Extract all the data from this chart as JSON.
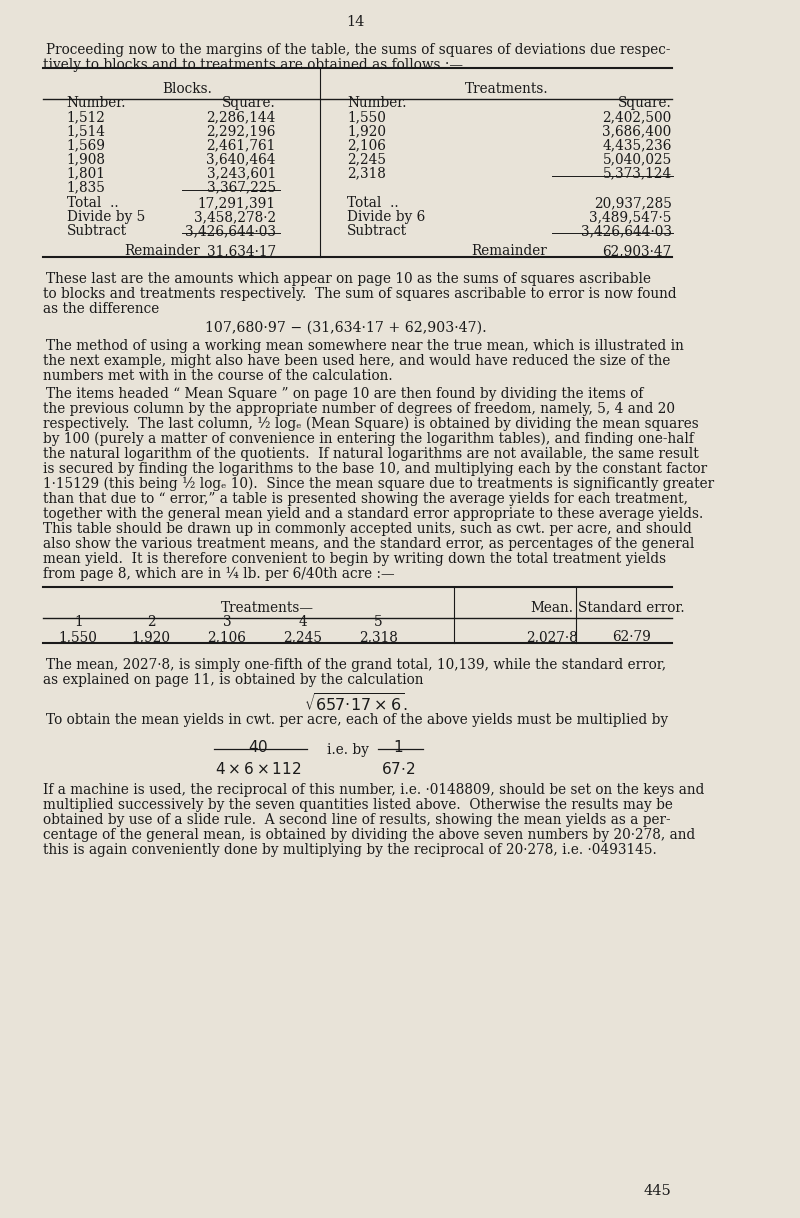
{
  "page_number": "14",
  "bg_color": "#e8e3d8",
  "text_color": "#1a1a1a",
  "page_number_bottom": "445",
  "intro_line1": "Proceeding now to the margins of the table, the sums of squares of deviations due respec-",
  "intro_line2": "tively to blocks and to treatments are obtained as follows :—",
  "table1": {
    "blocks_header": "Blocks.",
    "treatments_header": "Treatments.",
    "col1_header": "Number.",
    "col2_header": "Square.",
    "col3_header": "Number.",
    "col4_header": "Square.",
    "blocks_numbers": [
      "1,512",
      "1,514",
      "1,569",
      "1,908",
      "1,801",
      "1,835"
    ],
    "blocks_squares": [
      "2,286,144",
      "2,292,196",
      "2,461,761",
      "3,640,464",
      "3,243,601",
      "3,367,225"
    ],
    "treatments_numbers": [
      "1,550",
      "1,920",
      "2,106",
      "2,245",
      "2,318"
    ],
    "treatments_squares": [
      "2,402,500",
      "3,686,400",
      "4,435,236",
      "5,040,025",
      "5,373,124"
    ],
    "blocks_total_label": "Total  ..",
    "blocks_total_value": "17,291,391",
    "blocks_divide_label": "Divide by 5",
    "blocks_divide_value": "3,458,278·2",
    "blocks_subtract_label": "Subtract",
    "blocks_subtract_value": "3,426,644·03",
    "blocks_remainder_label": "Remainder",
    "blocks_remainder_value": "31,634·17",
    "treatments_total_label": "Total  ..",
    "treatments_total_value": "20,937,285",
    "treatments_divide_label": "Divide by 6",
    "treatments_divide_value": "3,489,547·5",
    "treatments_subtract_label": "Subtract",
    "treatments_subtract_value": "3,426,644·03",
    "treatments_remainder_label": "Remainder",
    "treatments_remainder_value": "62,903·47"
  },
  "para1_lines": [
    "These last are the amounts which appear on page 10 as the sums of squares ascribable",
    "to blocks and treatments respectively.  The sum of squares ascribable to error is now found",
    "as the difference"
  ],
  "formula1": "107,680·97 − (31,634·17 + 62,903·47).",
  "para2_lines": [
    "The method of using a working mean somewhere near the true mean, which is illustrated in",
    "the next example, might also have been used here, and would have reduced the size of the",
    "numbers met with in the course of the calculation."
  ],
  "para3_lines": [
    "The items headed “ Mean Square ” on page 10 are then found by dividing the items of",
    "the previous column by the appropriate number of degrees of freedom, namely, 5, 4 and 20",
    "respectively.  The last column, ½ logₑ (Mean Square) is obtained by dividing the mean squares",
    "by 100 (purely a matter of convenience in entering the logarithm tables), and finding one-half",
    "the natural logarithm of the quotients.  If natural logarithms are not available, the same result",
    "is secured by finding the logarithms to the base 10, and multiplying each by the constant factor",
    "1·15129 (this being ½ logₑ 10).  Since the mean square due to treatments is significantly greater",
    "than that due to “ error,” a table is presented showing the average yields for each treatment,",
    "together with the general mean yield and a standard error appropriate to these average yields.",
    "This table should be drawn up in commonly accepted units, such as cwt. per acre, and should",
    "also show the various treatment means, and the standard error, as percentages of the general",
    "mean yield.  It is therefore convenient to begin by writing down the total treatment yields",
    "from page 8, which are in ¼ lb. per 6/40th acre :—"
  ],
  "table2": {
    "treatments_header": "Treatments—",
    "col_headers": [
      "1",
      "2",
      "3",
      "4",
      "5"
    ],
    "mean_header": "Mean.",
    "se_header": "Standard error.",
    "values": [
      "1,550",
      "1,920",
      "2,106",
      "2,245",
      "2,318"
    ],
    "mean_value": "2,027·8",
    "se_value": "62·79"
  },
  "para4_lines": [
    "The mean, 2027·8, is simply one-fifth of the grand total, 10,139, while the standard error,",
    "as explained on page 11, is obtained by the calculation"
  ],
  "formula2": "$\\sqrt{657{\\cdot}17 \\times 6}.$",
  "para5": "To obtain the mean yields in cwt. per acre, each of the above yields must be multiplied by",
  "formula3_num": "40",
  "formula3_den": "4 \\times 6 \\times 112",
  "formula3_text": "i.e. by",
  "formula3_frac_num": "1",
  "formula3_frac_den": "67{\\cdot}2",
  "para6_lines": [
    "If a machine is used, the reciprocal of this number, i.e. ·0148809, should be set on the keys and",
    "multiplied successively by the seven quantities listed above.  Otherwise the results may be",
    "obtained by use of a slide rule.  A second line of results, showing the mean yields as a per-",
    "centage of the general mean, is obtained by dividing the above seven numbers by 20·278, and",
    "this is again conveniently done by multiplying by the reciprocal of 20·278, i.e. ·0493145."
  ]
}
